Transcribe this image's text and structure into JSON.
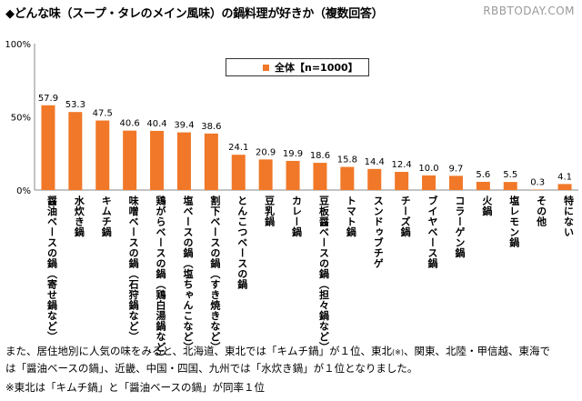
{
  "title": "◆どんな味（スープ・タレのメイン風味）の鍋料理が好きか（複数回答）",
  "watermark": "RBBTODAY.COM",
  "chart_data": {
    "type": "bar",
    "ylim": [
      0,
      100
    ],
    "yticks": [
      "0%",
      "50%",
      "100%"
    ],
    "bar_color": "#f07828",
    "legend": "全体【n=1000】",
    "categories": [
      "醤油ベースの鍋（寄せ鍋など）",
      "水炊き鍋",
      "キムチ鍋",
      "味噌ベースの鍋（石狩鍋など）",
      "鶏がらベースの鍋（鶏白湯鍋など）",
      "塩ベースの鍋（塩ちゃんこなど）",
      "割下ベースの鍋（すき焼きなど）",
      "とんこつベースの鍋",
      "豆乳鍋",
      "カレー鍋",
      "豆板醤ベースの鍋（担々鍋など）",
      "トマト鍋",
      "スンドゥブチゲ",
      "チーズ鍋",
      "ブイヤベース鍋",
      "コラーゲン鍋",
      "火鍋",
      "塩レモン鍋",
      "その他",
      "特にない"
    ],
    "values": [
      57.9,
      53.3,
      47.5,
      40.6,
      40.4,
      39.4,
      38.6,
      24.1,
      20.9,
      19.9,
      18.6,
      15.8,
      14.4,
      12.4,
      10.0,
      9.7,
      5.6,
      5.5,
      0.3,
      4.1
    ],
    "value_labels": [
      "57.9",
      "53.3",
      "47.5",
      "40.6",
      "40.4",
      "39.4",
      "38.6",
      "24.1",
      "20.9",
      "19.9",
      "18.6",
      "15.8",
      "14.4",
      "12.4",
      "10.0",
      "9.7",
      "5.6",
      "5.5",
      "0.3",
      "4.1"
    ]
  },
  "notes": {
    "line1": "また、居住地別に人気の味をみると、北海道、東北では「キムチ鍋」が１位、東北",
    "line1_mark": "(※)",
    "line1_end": "、関東、北陸・甲信越、東海で",
    "line2": "は「醤油ベースの鍋」、近畿、中国・四国、九州では「水炊き鍋」が１位となりました。",
    "line3": "※東北は「キムチ鍋」と「醤油ベースの鍋」が同率１位"
  }
}
